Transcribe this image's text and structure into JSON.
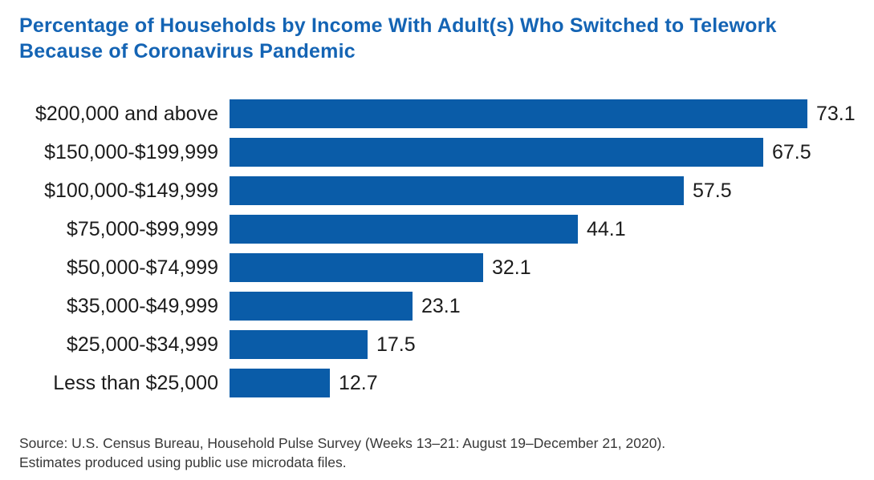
{
  "header": {
    "title": "Percentage of Households by Income With Adult(s) Who Switched to Telework Because of Coronavirus Pandemic"
  },
  "colors": {
    "bar": "#0A5CA8",
    "title": "#1464B4",
    "label_text": "#1C1C1C",
    "source_text": "#383838"
  },
  "chart_data": {
    "type": "bar",
    "orientation": "horizontal",
    "title": "Percentage of Households by Income With Adult(s) Who Switched to Telework Because of Coronavirus Pandemic",
    "categories": [
      "$200,000 and above",
      "$150,000-$199,999",
      "$100,000-$149,999",
      "$75,000-$99,999",
      "$50,000-$74,999",
      "$35,000-$49,999",
      "$25,000-$34,999",
      "Less than $25,000"
    ],
    "values": [
      73.1,
      67.5,
      57.5,
      44.1,
      32.1,
      23.1,
      17.5,
      12.7
    ],
    "xlabel": "",
    "ylabel": "",
    "xlim": [
      0,
      75
    ],
    "value_labels": true,
    "grid": false,
    "legend": false
  },
  "source": {
    "line1": "Source: U.S. Census Bureau, Household Pulse Survey (Weeks 13–21: August 19–December 21, 2020).",
    "line2": "Estimates produced using public use microdata files."
  }
}
